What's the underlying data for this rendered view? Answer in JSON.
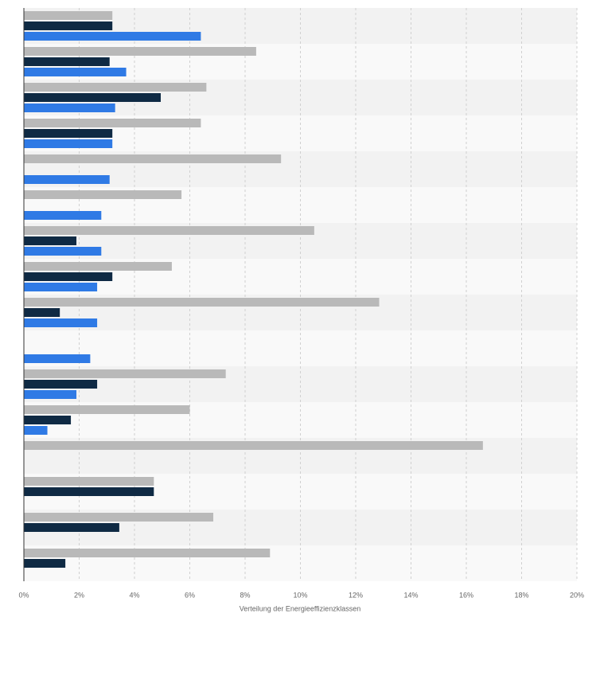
{
  "chart_data": {
    "type": "hbar",
    "categories": [
      null,
      null,
      null,
      null,
      null,
      null,
      null,
      null,
      null,
      null,
      null,
      null,
      null,
      null,
      null,
      null
    ],
    "series": [
      {
        "color": "#b9b9b9",
        "values": [
          3.2,
          8.4,
          6.6,
          6.4,
          9.3,
          5.7,
          10.5,
          5.35,
          12.85,
          null,
          7.3,
          6.0,
          16.6,
          4.7,
          6.85,
          8.9
        ]
      },
      {
        "color": "#0f2a44",
        "values": [
          3.2,
          3.1,
          4.95,
          3.2,
          null,
          null,
          1.9,
          3.2,
          1.3,
          null,
          2.65,
          1.7,
          null,
          4.7,
          3.45,
          1.5
        ]
      },
      {
        "color": "#2f7ae5",
        "values": [
          6.4,
          3.7,
          3.3,
          3.2,
          3.1,
          2.8,
          2.8,
          2.65,
          2.65,
          2.4,
          1.9,
          0.85,
          null,
          null,
          null,
          null
        ]
      }
    ],
    "xlabel": "Verteilung der Energieeffizienzklassen",
    "xlim": [
      0,
      20
    ],
    "xticks": [
      {
        "value": 0,
        "label": "0%"
      },
      {
        "value": 2,
        "label": "2%"
      },
      {
        "value": 4,
        "label": "4%"
      },
      {
        "value": 6,
        "label": "6%"
      },
      {
        "value": 8,
        "label": "8%"
      },
      {
        "value": 10,
        "label": "10%"
      },
      {
        "value": 12,
        "label": "12%"
      },
      {
        "value": 14,
        "label": "14%"
      },
      {
        "value": 16,
        "label": "16%"
      },
      {
        "value": 18,
        "label": "18%"
      },
      {
        "value": 20,
        "label": "20%"
      }
    ],
    "grid": true
  }
}
